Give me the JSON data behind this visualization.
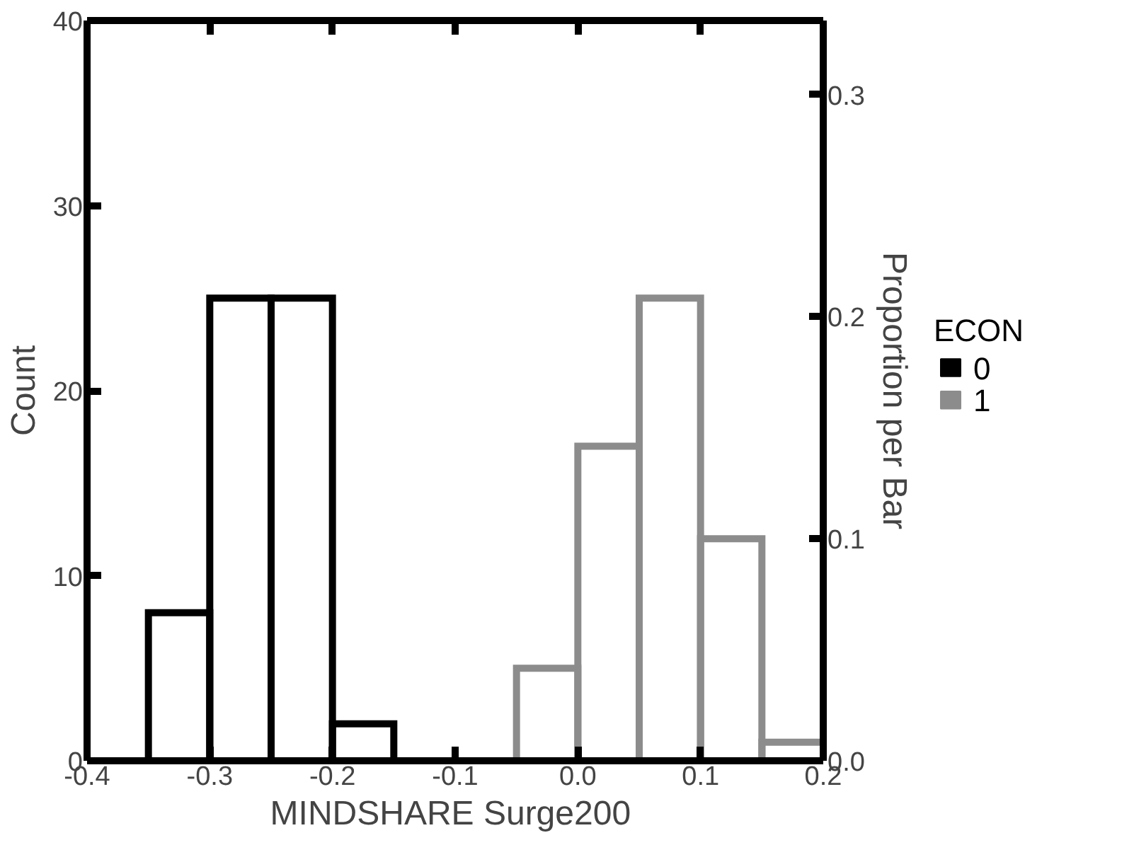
{
  "chart_data": {
    "type": "histogram",
    "xlabel": "MINDSHARE  Surge200",
    "ylabel": "Count",
    "y2label": "Proportion per Bar",
    "legend_title": "ECON",
    "legend": "right",
    "grid": false,
    "bins": [
      -0.4,
      -0.35,
      -0.3,
      -0.25,
      -0.2,
      -0.15,
      -0.1,
      -0.05,
      0.0,
      0.05,
      0.1,
      0.15,
      0.2
    ],
    "series": [
      {
        "name": "0",
        "color": "#000000",
        "values": [
          0,
          8,
          25,
          25,
          2,
          0,
          0,
          0,
          0,
          0,
          0,
          0
        ]
      },
      {
        "name": "1",
        "color": "#8c8c8c",
        "values": [
          0,
          0,
          0,
          0,
          0,
          0,
          0,
          5,
          17,
          25,
          12,
          1
        ]
      }
    ],
    "xlim": [
      -0.4,
      0.2
    ],
    "xticks": [
      {
        "value": -0.4,
        "label": "-0.4"
      },
      {
        "value": -0.3,
        "label": "-0.3"
      },
      {
        "value": -0.2,
        "label": "-0.2"
      },
      {
        "value": -0.1,
        "label": "-0.1"
      },
      {
        "value": 0.0,
        "label": "0.0"
      },
      {
        "value": 0.1,
        "label": "0.1"
      },
      {
        "value": 0.2,
        "label": "0.2"
      }
    ],
    "ylim": [
      0,
      40
    ],
    "yticks": [
      0,
      10,
      20,
      30,
      40
    ],
    "y2lim": [
      0,
      0.3333
    ],
    "y2ticks": [
      {
        "value": 0,
        "label": "0.0"
      },
      {
        "value": 0.1,
        "label": "0.1"
      },
      {
        "value": 0.2,
        "label": "0.2"
      },
      {
        "value": 0.3,
        "label": "0.3"
      }
    ]
  }
}
